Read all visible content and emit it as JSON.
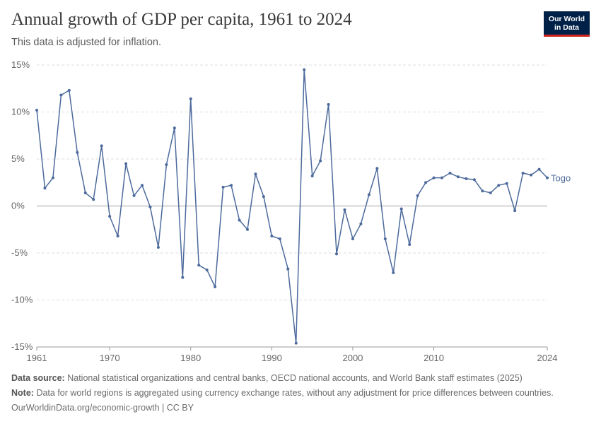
{
  "header": {
    "title": "Annual growth of GDP per capita, 1961 to 2024",
    "subtitle": "This data is adjusted for inflation.",
    "logo_line1": "Our World",
    "logo_line2": "in Data"
  },
  "footer": {
    "source_label": "Data source:",
    "source_text": "National statistical organizations and central banks, OECD national accounts, and World Bank staff estimates (2025)",
    "note_label": "Note:",
    "note_text": "Data for world regions is aggregated using currency exchange rates, without any adjustment for price differences between countries.",
    "url": "OurWorldinData.org/economic-growth | CC BY"
  },
  "colors": {
    "series": "#4c6a9c",
    "zero_line": "#a0a0a0",
    "grid": "#dddddd",
    "axis": "#999999",
    "text": "#666666"
  },
  "chart_data": {
    "type": "line",
    "title": "Annual growth of GDP per capita, 1961 to 2024",
    "subtitle": "This data is adjusted for inflation.",
    "x_ticks": [
      1961,
      1970,
      1980,
      1990,
      2000,
      2010,
      2024
    ],
    "y_ticks": [
      15,
      10,
      5,
      0,
      -5,
      -10,
      -15
    ],
    "y_tick_labels": [
      "15%",
      "10%",
      "5%",
      "0%",
      "-5%",
      "-10%",
      "-15%"
    ],
    "xlim": [
      1961,
      2024
    ],
    "ylim": [
      -15,
      15
    ],
    "grid": true,
    "series": [
      {
        "name": "Togo",
        "x": [
          1961,
          1962,
          1963,
          1964,
          1965,
          1966,
          1967,
          1968,
          1969,
          1970,
          1971,
          1972,
          1973,
          1974,
          1975,
          1976,
          1977,
          1978,
          1979,
          1980,
          1981,
          1982,
          1983,
          1984,
          1985,
          1986,
          1987,
          1988,
          1989,
          1990,
          1991,
          1992,
          1993,
          1994,
          1995,
          1996,
          1997,
          1998,
          1999,
          2000,
          2001,
          2002,
          2003,
          2004,
          2005,
          2006,
          2007,
          2008,
          2009,
          2010,
          2011,
          2012,
          2013,
          2014,
          2015,
          2016,
          2017,
          2018,
          2019,
          2020,
          2021,
          2022,
          2023,
          2024
        ],
        "values": [
          10.2,
          1.9,
          3.0,
          11.8,
          12.3,
          5.7,
          1.4,
          0.7,
          6.4,
          -1.1,
          -3.2,
          4.5,
          1.1,
          2.2,
          -0.1,
          -4.4,
          4.4,
          8.3,
          -7.6,
          11.4,
          -6.3,
          -6.8,
          -8.6,
          2.0,
          2.2,
          -1.5,
          -2.5,
          3.4,
          1.0,
          -3.2,
          -3.5,
          -6.7,
          -14.6,
          14.5,
          3.2,
          4.8,
          10.8,
          -5.1,
          -0.4,
          -3.5,
          -1.9,
          1.2,
          4.0,
          -3.5,
          -7.1,
          -0.3,
          -4.1,
          1.1,
          2.5,
          3.0,
          3.0,
          3.5,
          3.1,
          2.9,
          2.8,
          1.6,
          1.4,
          2.2,
          2.4,
          -0.5,
          3.5,
          3.3,
          3.9,
          3.0
        ]
      }
    ]
  }
}
